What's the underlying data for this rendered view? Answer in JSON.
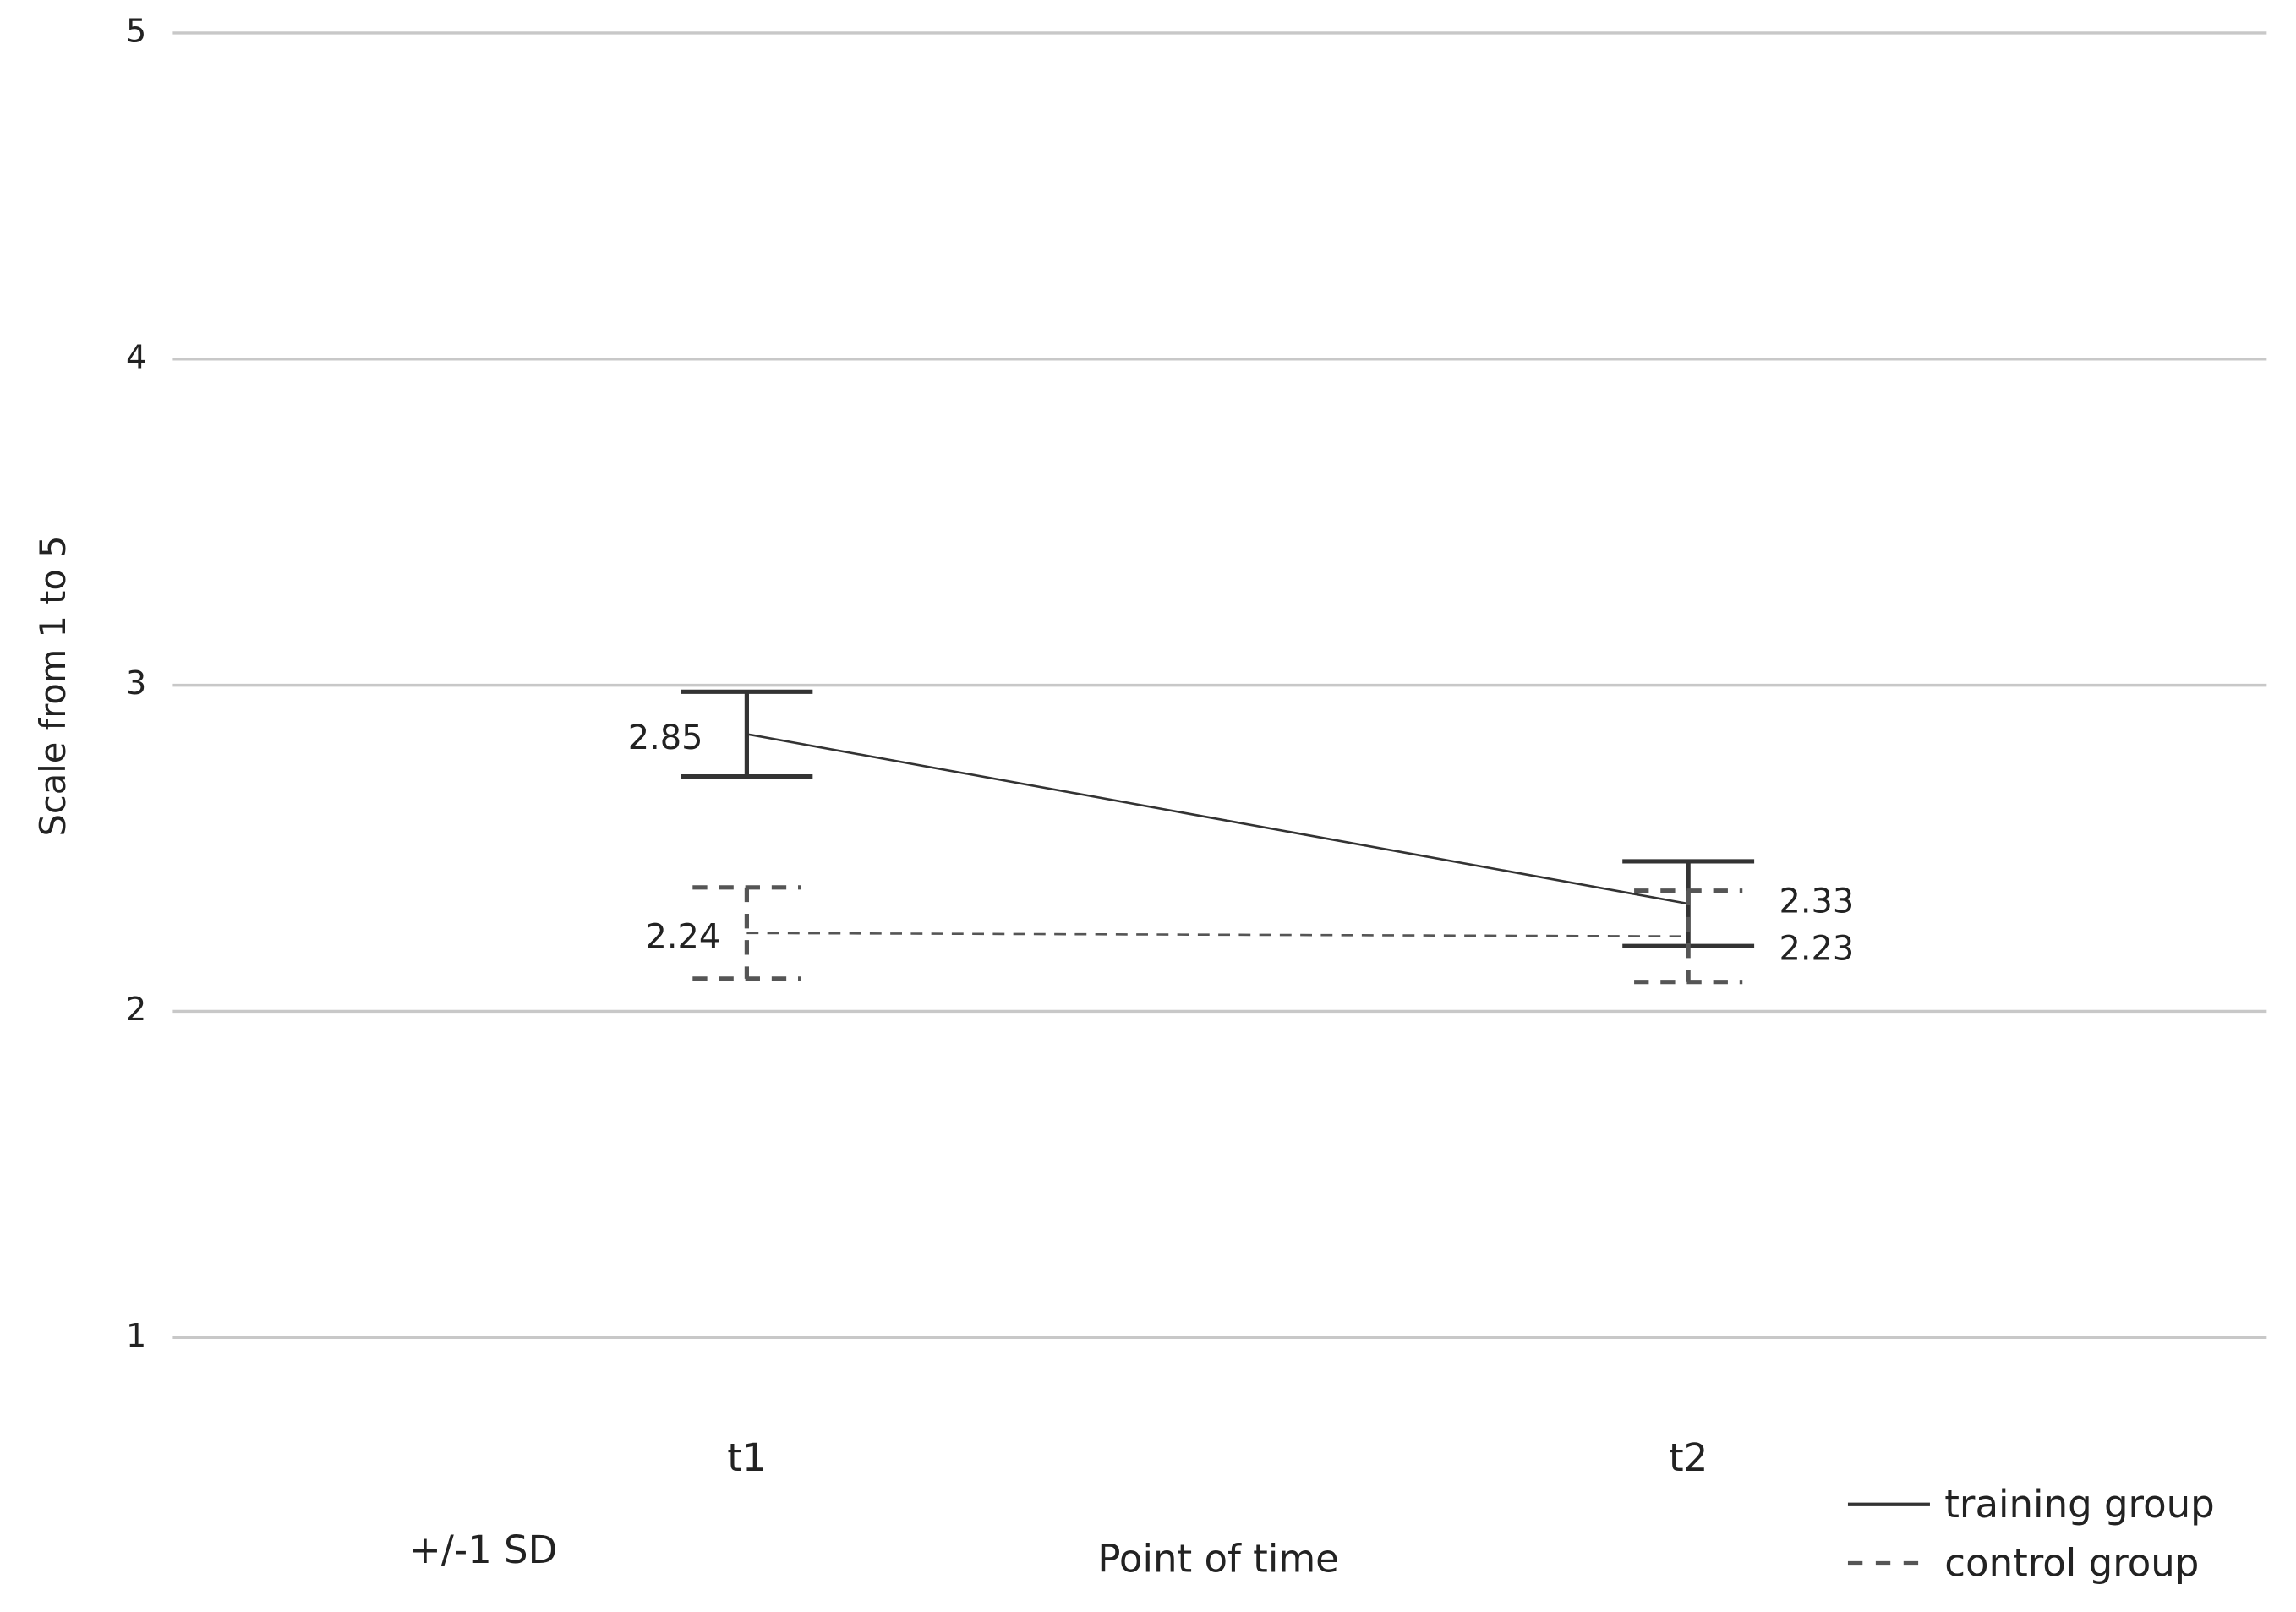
{
  "chart_data": {
    "type": "line",
    "y_label": "Scale from 1 to 5",
    "x_label": "Point of time",
    "annotation": "+/-1 SD",
    "categories": [
      "t1",
      "t2"
    ],
    "series": [
      {
        "name": "training group",
        "color": "#333333",
        "line_style": "solid",
        "values": [
          2.85,
          2.33
        ],
        "errors": [
          0.13,
          0.13
        ]
      },
      {
        "name": "control group",
        "color": "#555555",
        "line_style": "dashed",
        "values": [
          2.24,
          2.23
        ],
        "errors": [
          0.14,
          0.14
        ]
      }
    ],
    "ylim": [
      1,
      5
    ],
    "yticks": [
      1,
      2,
      3,
      4,
      5
    ],
    "grid": true,
    "legend": "bottom-right"
  }
}
